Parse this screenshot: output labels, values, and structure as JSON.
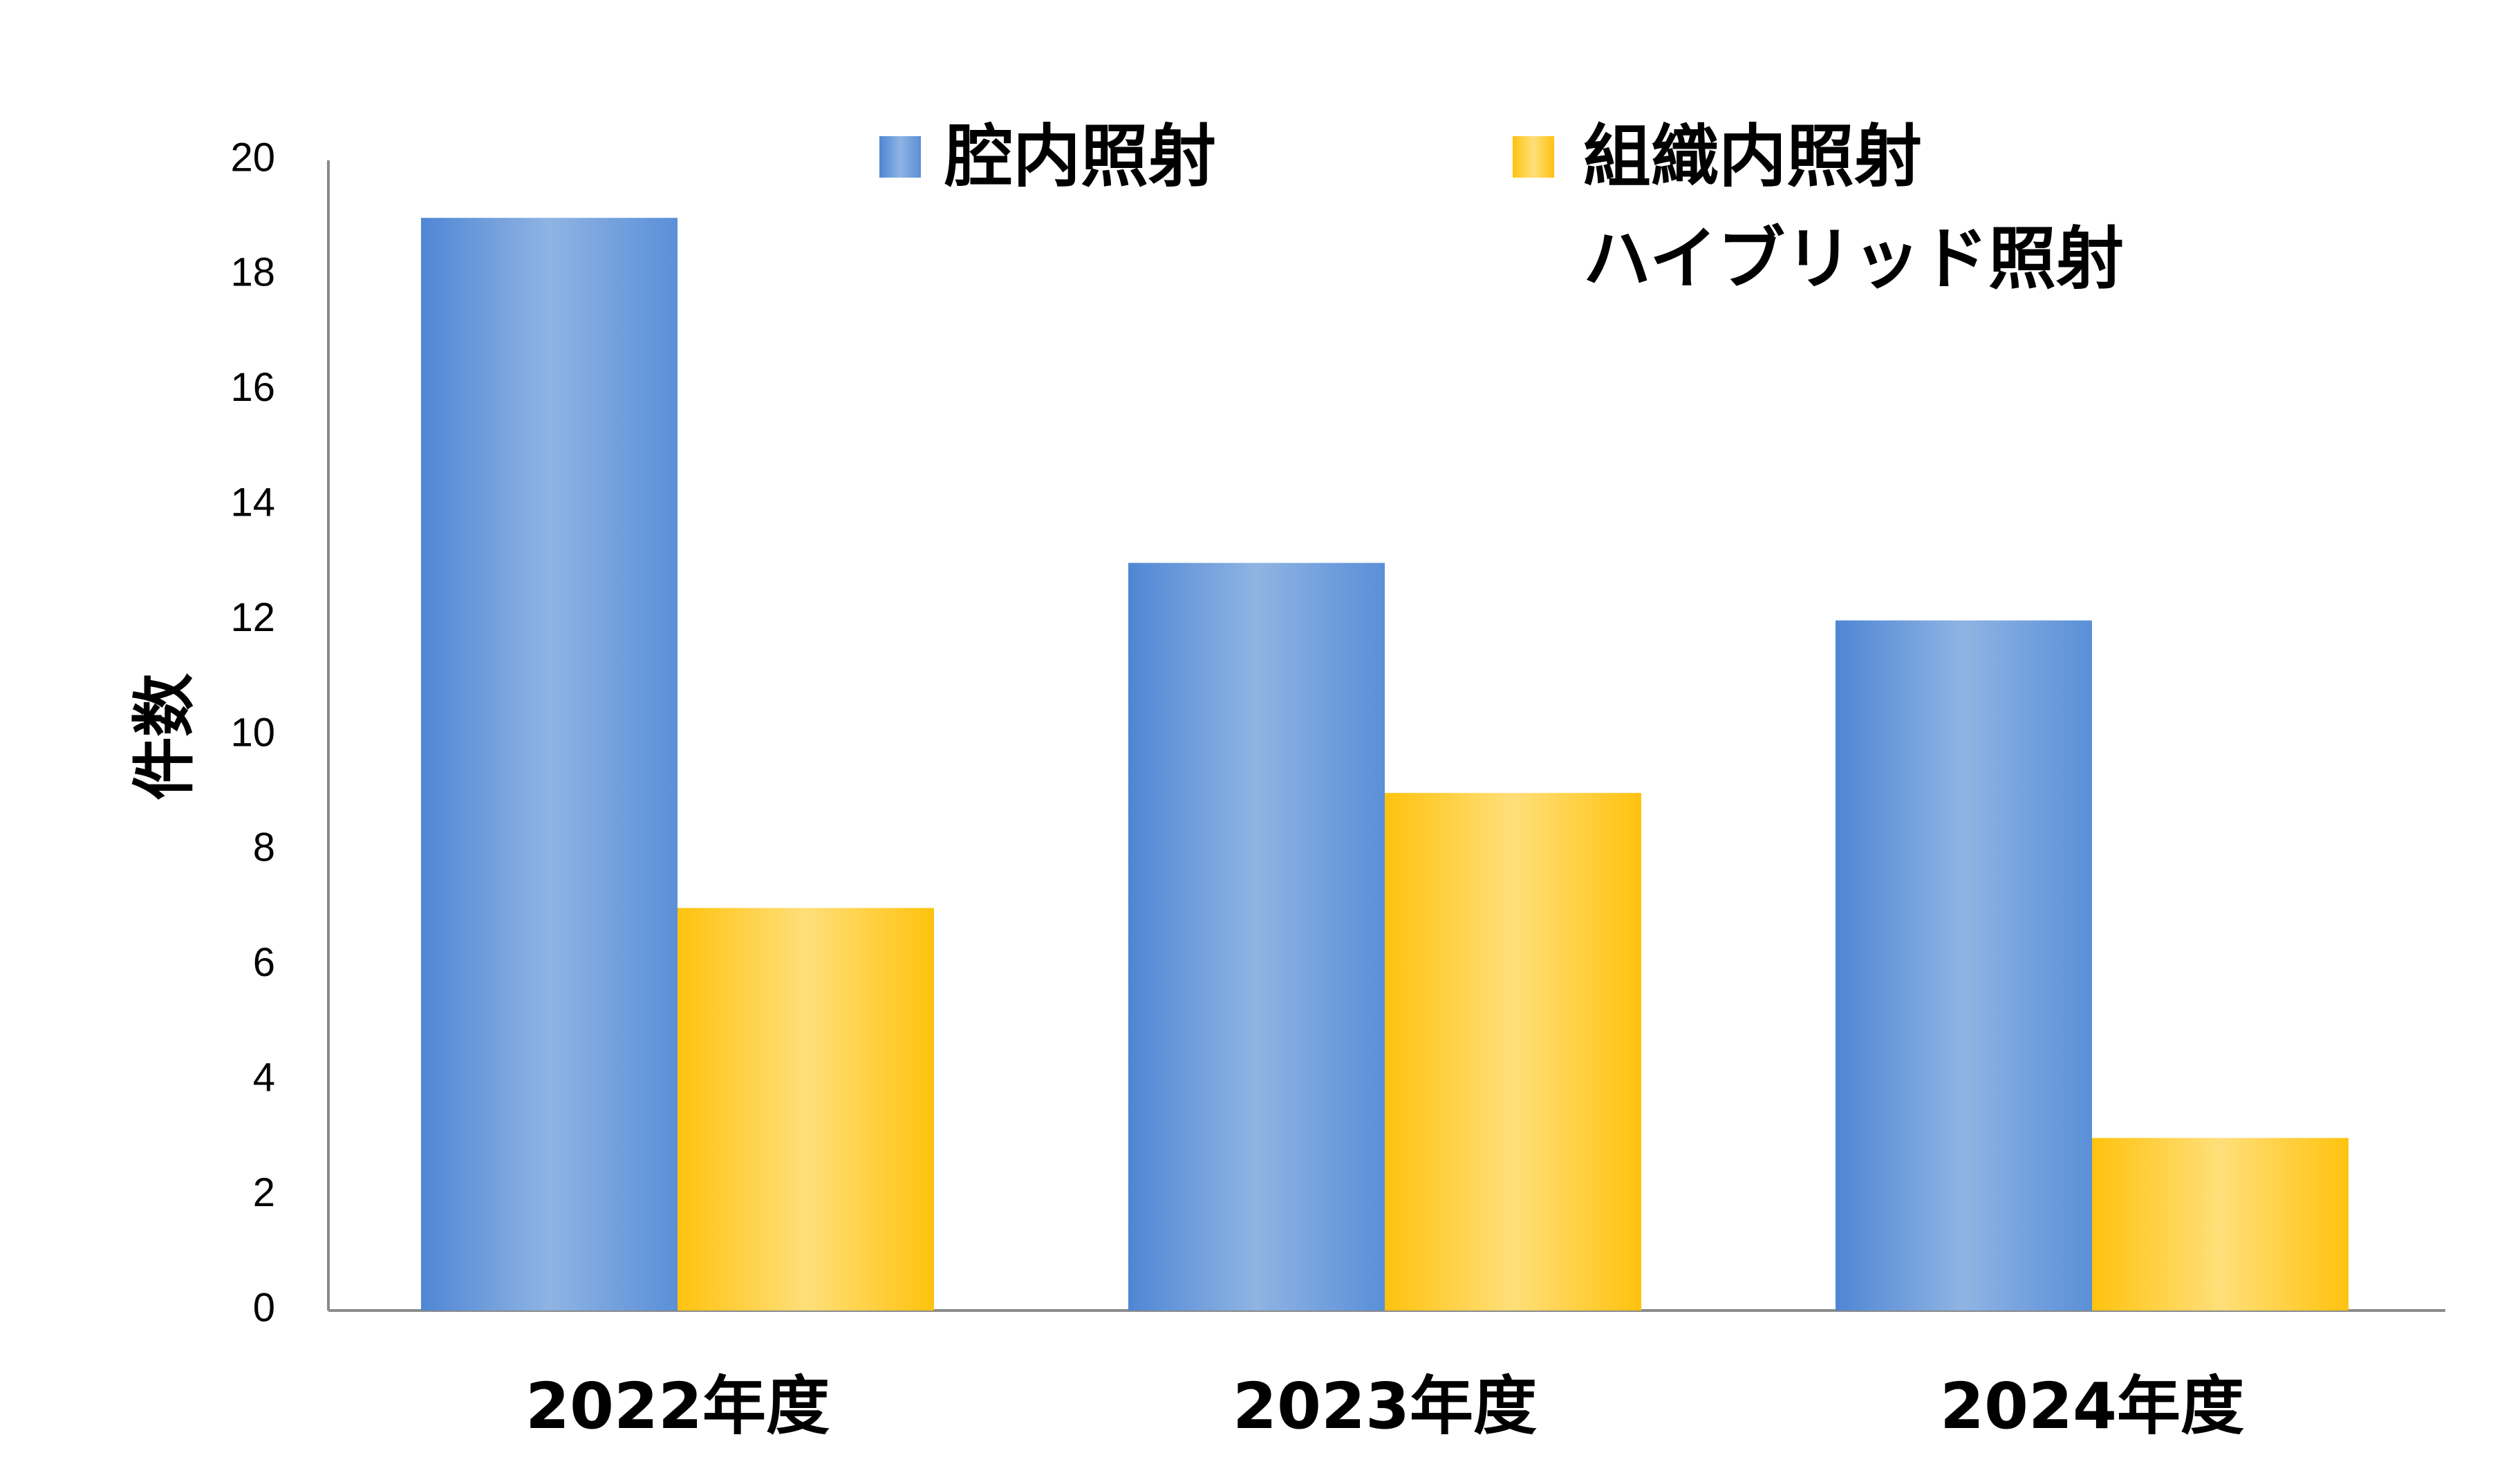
{
  "chart_data": {
    "type": "bar",
    "title": "",
    "xlabel": "",
    "ylabel": "件数",
    "ylim": [
      0,
      20
    ],
    "yticks": [
      0,
      2,
      4,
      6,
      8,
      10,
      12,
      14,
      16,
      18,
      20
    ],
    "grid": false,
    "legend_position": "top-right",
    "categories": [
      "2022年度",
      "2023年度",
      "2024年度"
    ],
    "series": [
      {
        "name": "腔内照射",
        "values": [
          19,
          13,
          12
        ],
        "color": "#5b8fd8"
      },
      {
        "name": "組織内照射",
        "values": [
          7,
          9,
          3
        ],
        "color": "#ffc20e"
      }
    ],
    "legend_extra": "ハイブリッド照射"
  }
}
